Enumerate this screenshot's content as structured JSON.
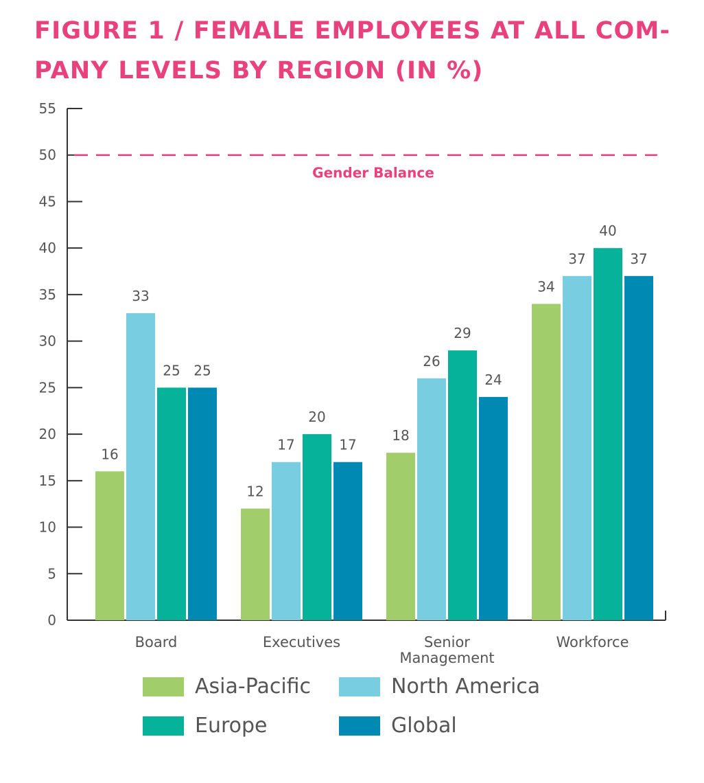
{
  "chart_data": {
    "type": "bar",
    "title": "FIGURE 1 / FEMALE EMPLOYEES AT ALL COM-PANY LEVELS BY REGION (IN %)",
    "title_lines": [
      "FIGURE 1 / FEMALE EMPLOYEES AT ALL COM-",
      "PANY LEVELS BY REGION (IN %)"
    ],
    "categories": [
      "Board",
      "Executives",
      "Senior Management",
      "Workforce"
    ],
    "category_lines": [
      [
        "Board"
      ],
      [
        "Executives"
      ],
      [
        "Senior",
        "Management"
      ],
      [
        "Workforce"
      ]
    ],
    "series": [
      {
        "name": "Asia-Pacific",
        "color": "#a1cd6a",
        "values": [
          16,
          12,
          18,
          34
        ]
      },
      {
        "name": "North America",
        "color": "#79cde1",
        "values": [
          33,
          17,
          26,
          37
        ]
      },
      {
        "name": "Europe",
        "color": "#07b29a",
        "values": [
          25,
          20,
          29,
          40
        ]
      },
      {
        "name": "Global",
        "color": "#0089b3",
        "values": [
          25,
          17,
          24,
          37
        ]
      }
    ],
    "ylim": [
      0,
      55
    ],
    "yticks": [
      0,
      5,
      10,
      15,
      20,
      25,
      30,
      35,
      40,
      45,
      50,
      55
    ],
    "reference_line": {
      "value": 50,
      "label": "Gender Balance",
      "color": "#e8417c",
      "style": "dashed"
    },
    "xlabel": "",
    "ylabel": "",
    "grid": false,
    "legend_position": "bottom",
    "title_color": "#e8417c"
  }
}
